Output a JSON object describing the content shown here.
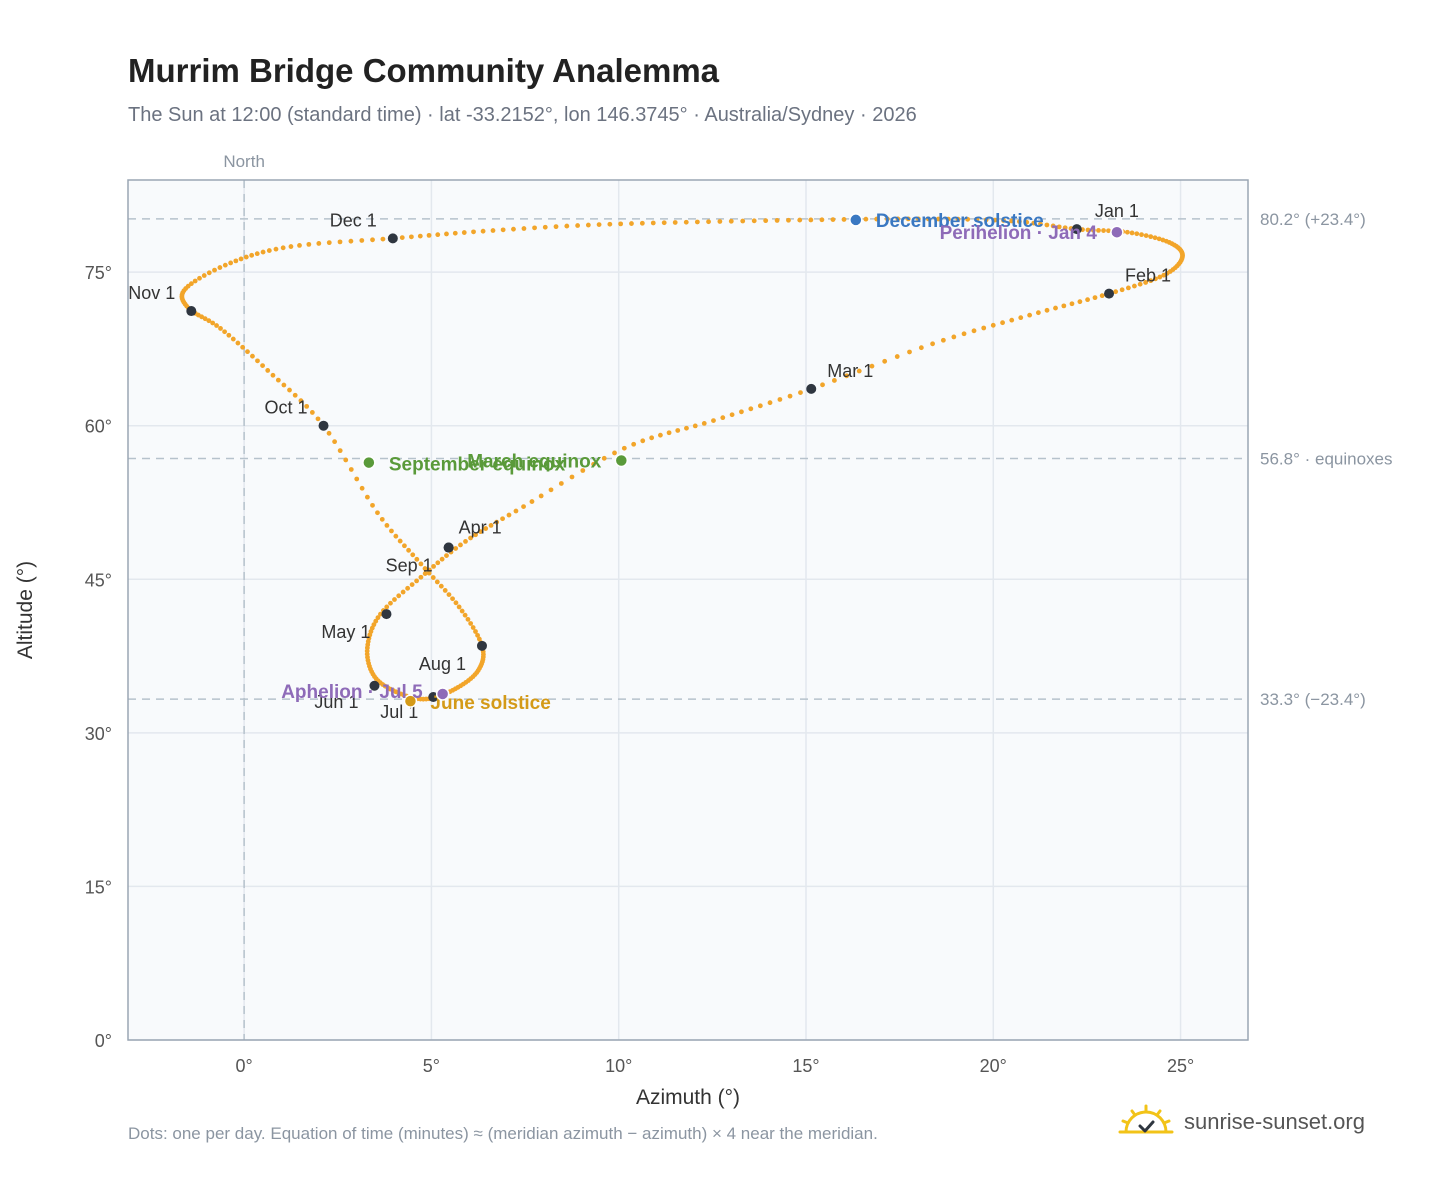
{
  "header": {
    "title": "Murrim Bridge Community Analemma",
    "subtitle": "The Sun at 12:00 (standard time) · lat -33.2152°, lon 146.3745° · Australia/Sydney · 2026"
  },
  "footer": {
    "note": "Dots: one per day. Equation of time (minutes) ≈ (meridian azimuth − azimuth) × 4 near the meridian.",
    "brand": "sunrise-sunset.org",
    "brand_icon": "sun-logo-icon"
  },
  "colors": {
    "curve": "#f2a52a",
    "month_marker": "#2f3640",
    "december": "#3a78c2",
    "equinox": "#5a9a3a",
    "june": "#d49a18",
    "apsis": "#8e6bb8",
    "grid": "#e3e8ee",
    "reference": "#b6c2cc",
    "plot_bg": "#f8fafc",
    "frame": "#9aa6b4"
  },
  "chart_data": {
    "type": "scatter",
    "xlabel": "Azimuth (°)",
    "ylabel": "Altitude (°)",
    "xlim": [
      -3.1,
      26.8
    ],
    "ylim": [
      0,
      84
    ],
    "x_ticks": [
      0,
      5,
      10,
      15,
      20,
      25
    ],
    "x_tick_labels": [
      "0°",
      "5°",
      "10°",
      "15°",
      "20°",
      "25°"
    ],
    "y_ticks": [
      0,
      15,
      30,
      45,
      60,
      75
    ],
    "y_tick_labels": [
      "0°",
      "15°",
      "30°",
      "45°",
      "60°",
      "75°"
    ],
    "grid": true,
    "north_line": {
      "azimuth": 0,
      "label": "North"
    },
    "reference_lines": [
      {
        "altitude": 80.2,
        "label": "80.2° (+23.4°)"
      },
      {
        "altitude": 56.8,
        "label": "56.8° · equinoxes"
      },
      {
        "altitude": 33.3,
        "label": "33.3° (−23.4°)"
      }
    ],
    "series": [
      {
        "note": "one dot per day",
        "x": [
          22.23,
          23.58,
          24.7,
          25.05,
          24.55,
          23.09,
          20.97,
          18.38,
          15.14,
          12.53,
          10.15,
          7.46,
          5.91,
          4.72,
          3.64,
          3.29,
          3.48,
          4.12,
          4.86,
          5.64,
          6.25,
          6.35,
          5.74,
          4.72,
          3.56,
          2.12,
          0.63,
          -0.63,
          -1.49,
          -1.56,
          -0.36,
          1.25,
          3.97,
          6.38,
          9.19,
          12.1,
          15.13,
          18.0,
          20.49,
          22.23
        ],
        "y": [
          79.2,
          78.9,
          77.9,
          76.5,
          74.7,
          72.9,
          70.8,
          68.0,
          63.6,
          60.5,
          57.8,
          52.1,
          48.7,
          45.2,
          41.6,
          38.3,
          35.5,
          33.9,
          33.3,
          34.3,
          36.1,
          38.5,
          42.3,
          46.5,
          51.5,
          60.0,
          65.4,
          69.5,
          71.5,
          73.4,
          75.9,
          77.5,
          78.3,
          79.0,
          79.6,
          79.9,
          80.1,
          80.2,
          80.0,
          79.2
        ]
      }
    ],
    "month_markers": [
      {
        "label": "Jan 1",
        "az": 22.23,
        "alt": 79.2
      },
      {
        "label": "Feb 1",
        "az": 23.09,
        "alt": 72.9
      },
      {
        "label": "Mar 1",
        "az": 15.14,
        "alt": 63.6
      },
      {
        "label": "Apr 1",
        "az": 5.46,
        "alt": 48.1
      },
      {
        "label": "May 1",
        "az": 3.8,
        "alt": 41.6
      },
      {
        "label": "Jun 1",
        "az": 3.48,
        "alt": 34.6
      },
      {
        "label": "Jul 1",
        "az": 5.05,
        "alt": 33.5
      },
      {
        "label": "Aug 1",
        "az": 6.35,
        "alt": 38.5
      },
      {
        "label": "Sep 1",
        "az": 5.46,
        "alt": 48.1
      },
      {
        "label": "Oct 1",
        "az": 2.12,
        "alt": 60.0
      },
      {
        "label": "Nov 1",
        "az": -1.41,
        "alt": 71.2
      },
      {
        "label": "Dec 1",
        "az": 3.97,
        "alt": 78.3
      }
    ],
    "events": [
      {
        "label": "December solstice",
        "az": 16.33,
        "alt": 80.1,
        "color": "#3a78c2"
      },
      {
        "label": "Perihelion · Jan 4",
        "az": 23.3,
        "alt": 78.9,
        "color": "#8e6bb8"
      },
      {
        "label": "March equinox",
        "az": 10.07,
        "alt": 56.6,
        "color": "#5a9a3a"
      },
      {
        "label": "September equinox",
        "az": 3.33,
        "alt": 56.4,
        "color": "#5a9a3a"
      },
      {
        "label": "June solstice",
        "az": 4.44,
        "alt": 33.1,
        "color": "#d49a18"
      },
      {
        "label": "Aphelion · Jul 5",
        "az": 5.3,
        "alt": 33.8,
        "color": "#8e6bb8"
      }
    ]
  }
}
